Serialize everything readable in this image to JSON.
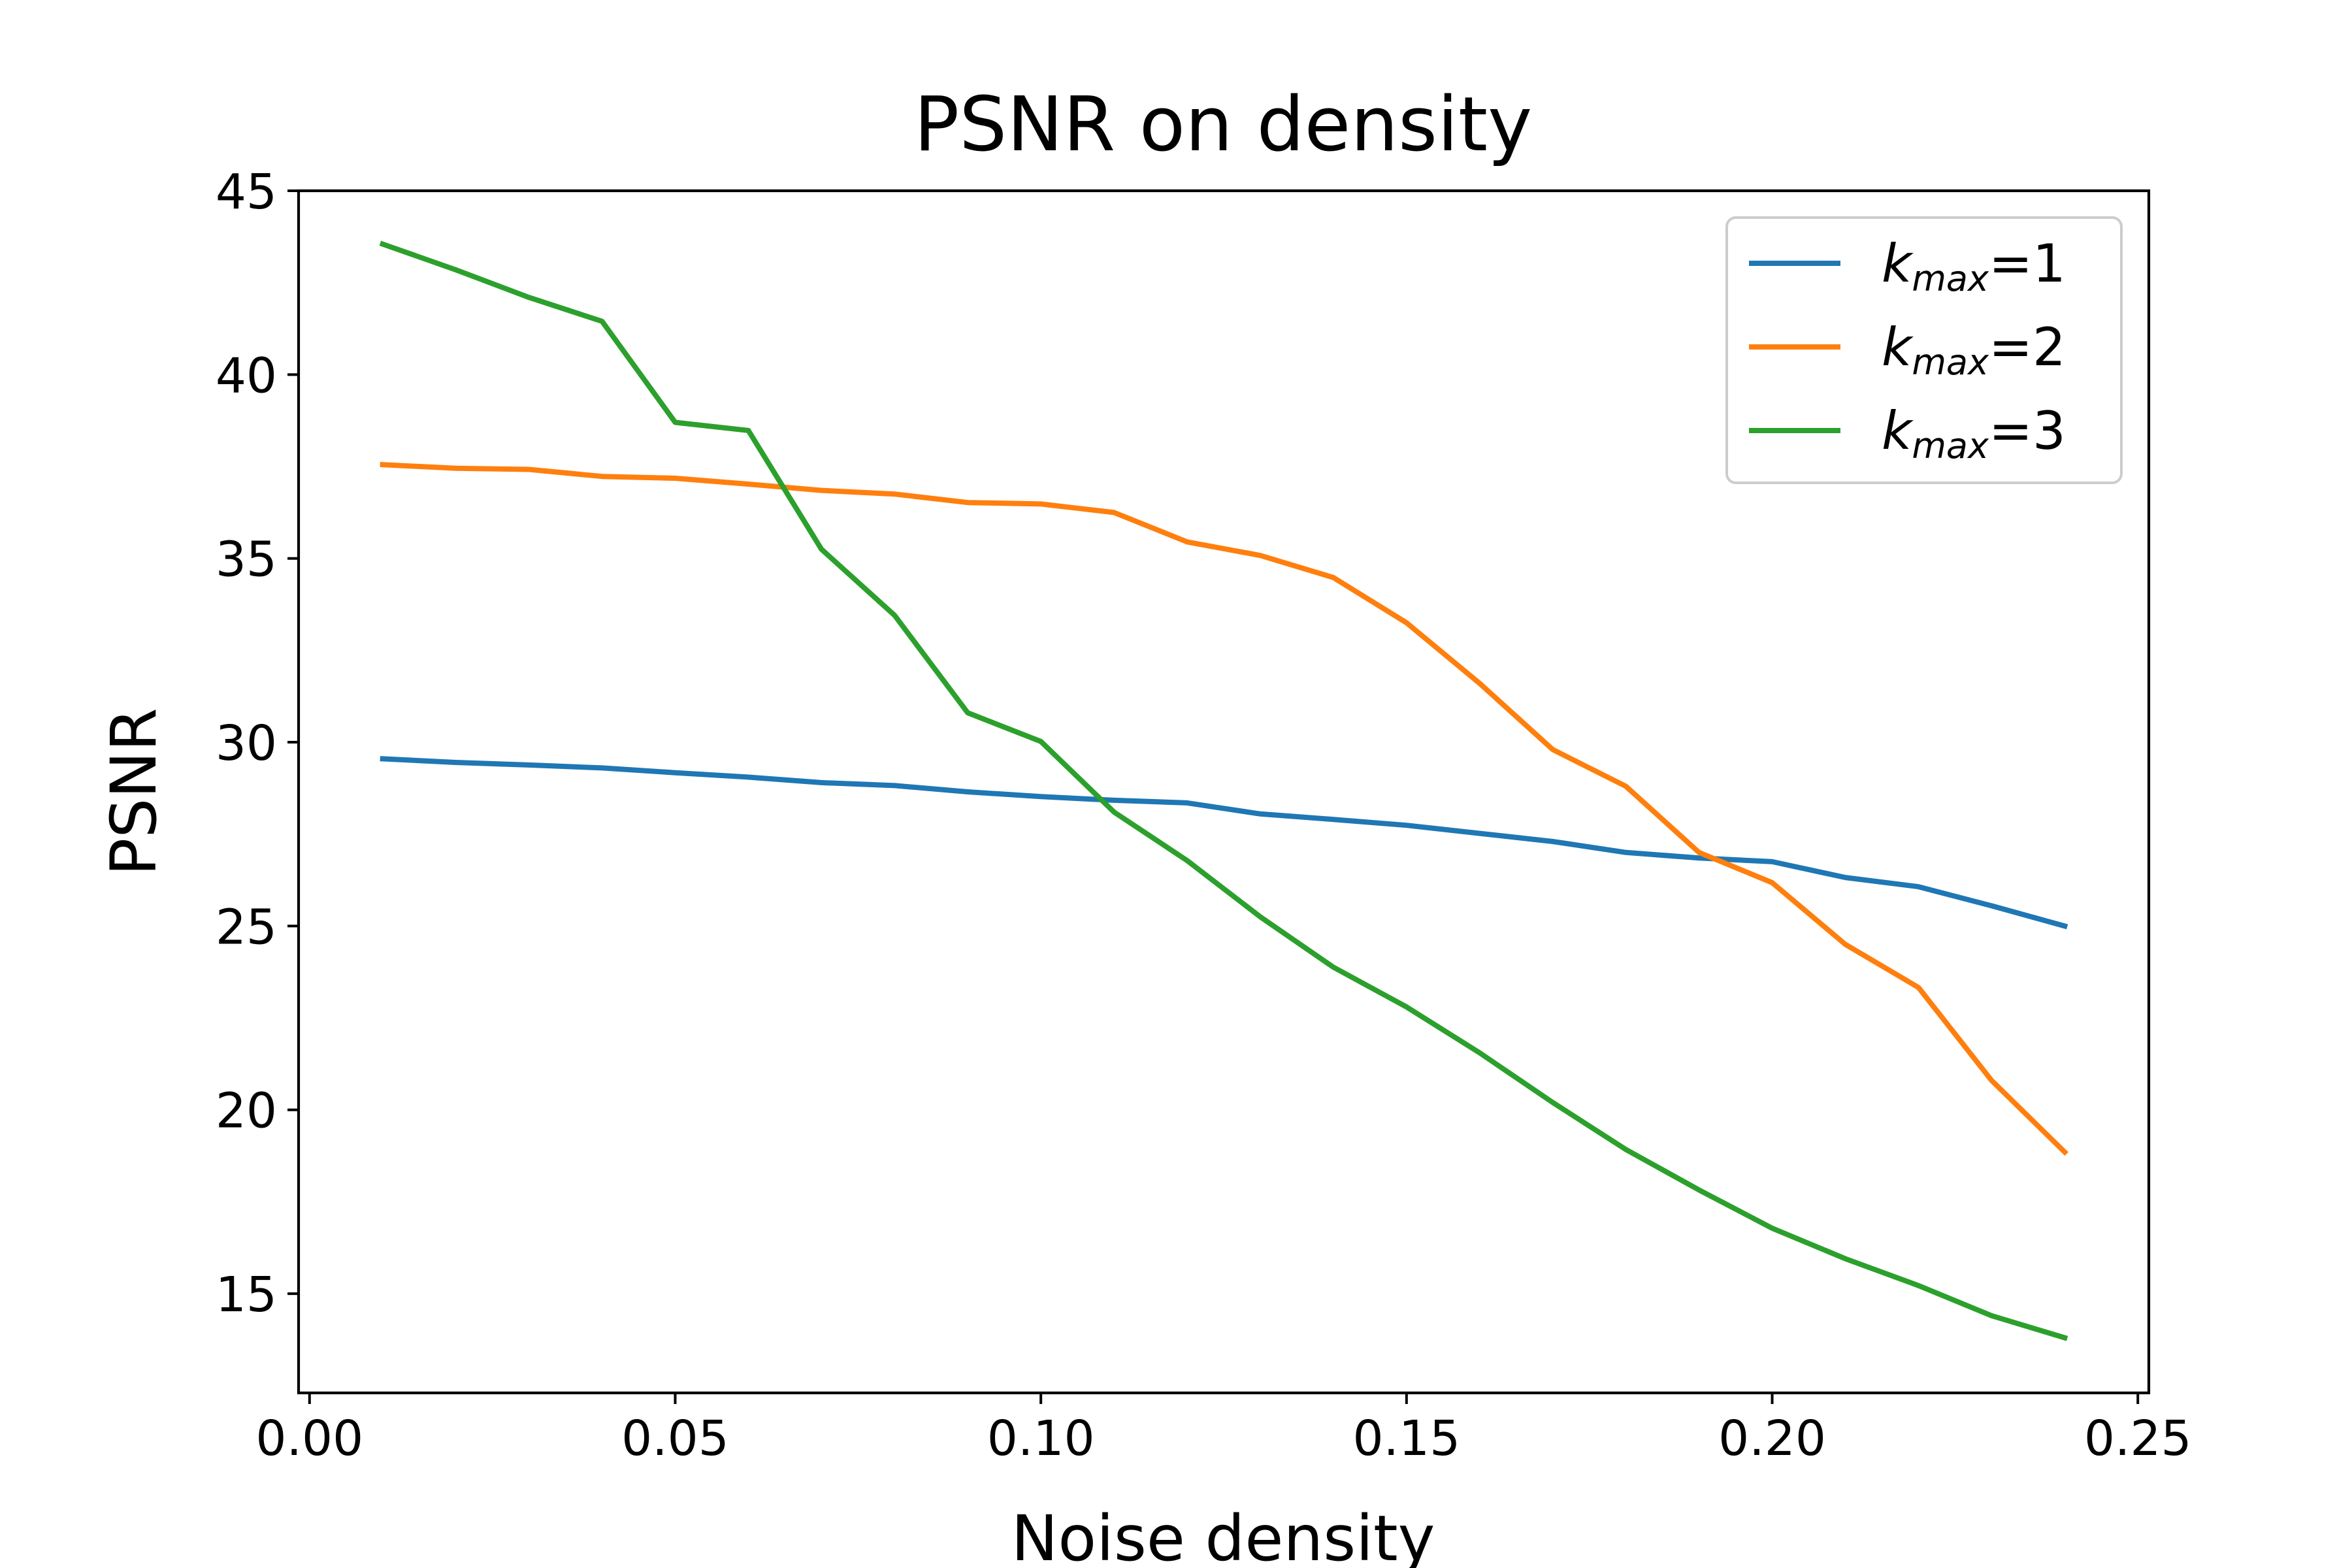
{
  "chart_data": {
    "type": "line",
    "title": "PSNR on density",
    "xlabel": "Noise density",
    "ylabel": "PSNR",
    "xlim": [
      -0.0015,
      0.2515
    ],
    "ylim": [
      12.3,
      45.0
    ],
    "xticks": [
      0.0,
      0.05,
      0.1,
      0.15,
      0.2,
      0.25
    ],
    "xtick_labels": [
      "0.00",
      "0.05",
      "0.10",
      "0.15",
      "0.20",
      "0.25"
    ],
    "yticks": [
      15,
      20,
      25,
      30,
      35,
      40,
      45
    ],
    "ytick_labels": [
      "15",
      "20",
      "25",
      "30",
      "35",
      "40",
      "45"
    ],
    "grid": false,
    "legend_position": "top-right",
    "x": [
      0.01,
      0.02,
      0.03,
      0.04,
      0.05,
      0.06,
      0.07,
      0.08,
      0.09,
      0.1,
      0.11,
      0.12,
      0.13,
      0.14,
      0.15,
      0.16,
      0.17,
      0.18,
      0.19,
      0.2,
      0.21,
      0.22,
      0.23,
      0.24
    ],
    "series": [
      {
        "name": "k_max=1",
        "legend_base": "k",
        "legend_sub": "max",
        "legend_suffix": "=1",
        "color": "#1f77b4",
        "values": [
          29.55,
          29.45,
          29.38,
          29.3,
          29.17,
          29.05,
          28.9,
          28.82,
          28.65,
          28.52,
          28.42,
          28.35,
          28.05,
          27.9,
          27.74,
          27.52,
          27.3,
          27.0,
          26.85,
          26.75,
          26.32,
          26.07,
          25.55,
          25.0
        ]
      },
      {
        "name": "k_max=2",
        "legend_base": "k",
        "legend_sub": "max",
        "legend_suffix": "=2",
        "color": "#ff7f0e",
        "values": [
          37.55,
          37.45,
          37.42,
          37.23,
          37.18,
          37.02,
          36.85,
          36.75,
          36.52,
          36.48,
          36.25,
          35.45,
          35.08,
          34.48,
          33.25,
          31.6,
          29.8,
          28.8,
          27.0,
          26.18,
          24.5,
          23.33,
          20.8,
          18.85
        ]
      },
      {
        "name": "k_max=3",
        "legend_base": "k",
        "legend_sub": "max",
        "legend_suffix": "=3",
        "color": "#2ca02c",
        "values": [
          43.55,
          42.85,
          42.1,
          41.45,
          38.7,
          38.48,
          35.25,
          33.45,
          30.8,
          30.02,
          28.1,
          26.78,
          25.25,
          23.88,
          22.8,
          21.55,
          20.2,
          18.92,
          17.82,
          16.78,
          15.95,
          15.22,
          14.4,
          13.8
        ]
      }
    ]
  }
}
